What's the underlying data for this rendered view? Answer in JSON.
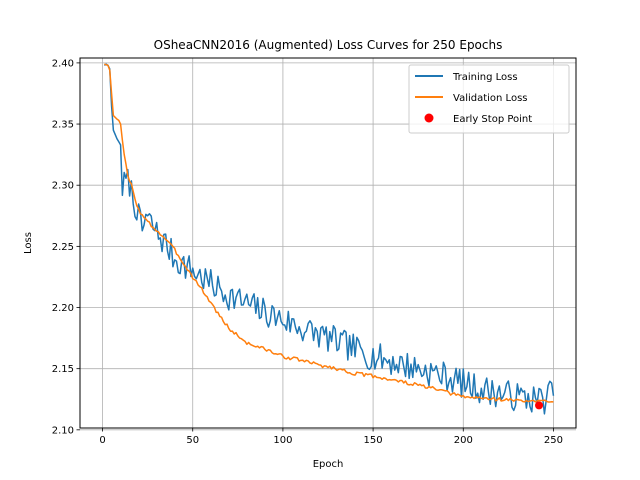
{
  "chart_data": {
    "type": "line",
    "title": "OSheaCNN2016 (Augmented) Loss Curves for 250 Epochs",
    "xlabel": "Epoch",
    "ylabel": "Loss",
    "xlim": [
      -12.5,
      262.5
    ],
    "ylim": [
      2.1015,
      2.404
    ],
    "xticks": [
      0,
      50,
      100,
      150,
      200,
      250
    ],
    "yticks": [
      2.1,
      2.15,
      2.2,
      2.25,
      2.3,
      2.35,
      2.4
    ],
    "xtick_labels": [
      "0",
      "50",
      "100",
      "150",
      "200",
      "250"
    ],
    "ytick_labels": [
      "2.10",
      "2.15",
      "2.20",
      "2.25",
      "2.30",
      "2.35",
      "2.40"
    ],
    "grid": true,
    "legend_position": "top-right",
    "series": [
      {
        "name": "Training Loss",
        "color": "#1f77b4",
        "anchors": [
          [
            1,
            2.398
          ],
          [
            2,
            2.399
          ],
          [
            3,
            2.398
          ],
          [
            4,
            2.395
          ],
          [
            5,
            2.365
          ],
          [
            6,
            2.345
          ],
          [
            8,
            2.338
          ],
          [
            10,
            2.333
          ],
          [
            11,
            2.298
          ],
          [
            13,
            2.303
          ],
          [
            15,
            2.302
          ],
          [
            17,
            2.288
          ],
          [
            19,
            2.282
          ],
          [
            20,
            2.273
          ],
          [
            22,
            2.262
          ],
          [
            24,
            2.275
          ],
          [
            26,
            2.27
          ],
          [
            28,
            2.266
          ],
          [
            30,
            2.261
          ],
          [
            35,
            2.252
          ],
          [
            40,
            2.24
          ],
          [
            45,
            2.235
          ],
          [
            50,
            2.23
          ],
          [
            55,
            2.225
          ],
          [
            60,
            2.219
          ],
          [
            70,
            2.21
          ],
          [
            80,
            2.203
          ],
          [
            90,
            2.196
          ],
          [
            100,
            2.19
          ],
          [
            110,
            2.183
          ],
          [
            120,
            2.178
          ],
          [
            130,
            2.172
          ],
          [
            140,
            2.166
          ],
          [
            150,
            2.16
          ],
          [
            160,
            2.156
          ],
          [
            170,
            2.152
          ],
          [
            180,
            2.148
          ],
          [
            190,
            2.144
          ],
          [
            200,
            2.138
          ],
          [
            210,
            2.133
          ],
          [
            220,
            2.13
          ],
          [
            230,
            2.127
          ],
          [
            240,
            2.125
          ],
          [
            245,
            2.125
          ],
          [
            250,
            2.133
          ]
        ],
        "noise": 0.012,
        "seed": 7
      },
      {
        "name": "Validation Loss",
        "color": "#ff7f0e",
        "anchors": [
          [
            1,
            2.399
          ],
          [
            3,
            2.398
          ],
          [
            4,
            2.394
          ],
          [
            5,
            2.375
          ],
          [
            6,
            2.357
          ],
          [
            8,
            2.354
          ],
          [
            9,
            2.353
          ],
          [
            10,
            2.35
          ],
          [
            12,
            2.325
          ],
          [
            14,
            2.307
          ],
          [
            16,
            2.3
          ],
          [
            18,
            2.289
          ],
          [
            20,
            2.28
          ],
          [
            22,
            2.275
          ],
          [
            25,
            2.27
          ],
          [
            30,
            2.263
          ],
          [
            35,
            2.256
          ],
          [
            40,
            2.247
          ],
          [
            45,
            2.236
          ],
          [
            50,
            2.225
          ],
          [
            55,
            2.215
          ],
          [
            60,
            2.204
          ],
          [
            65,
            2.193
          ],
          [
            70,
            2.183
          ],
          [
            80,
            2.171
          ],
          [
            90,
            2.166
          ],
          [
            100,
            2.16
          ],
          [
            110,
            2.157
          ],
          [
            120,
            2.153
          ],
          [
            130,
            2.15
          ],
          [
            140,
            2.146
          ],
          [
            150,
            2.144
          ],
          [
            160,
            2.141
          ],
          [
            170,
            2.138
          ],
          [
            180,
            2.135
          ],
          [
            190,
            2.131
          ],
          [
            200,
            2.127
          ],
          [
            210,
            2.126
          ],
          [
            220,
            2.125
          ],
          [
            230,
            2.124
          ],
          [
            240,
            2.123
          ],
          [
            250,
            2.124
          ]
        ],
        "noise": 0.0015,
        "seed": 3
      }
    ],
    "early_stop": {
      "name": "Early Stop Point",
      "color": "#ff0000",
      "x": 242,
      "y": 2.12
    }
  }
}
